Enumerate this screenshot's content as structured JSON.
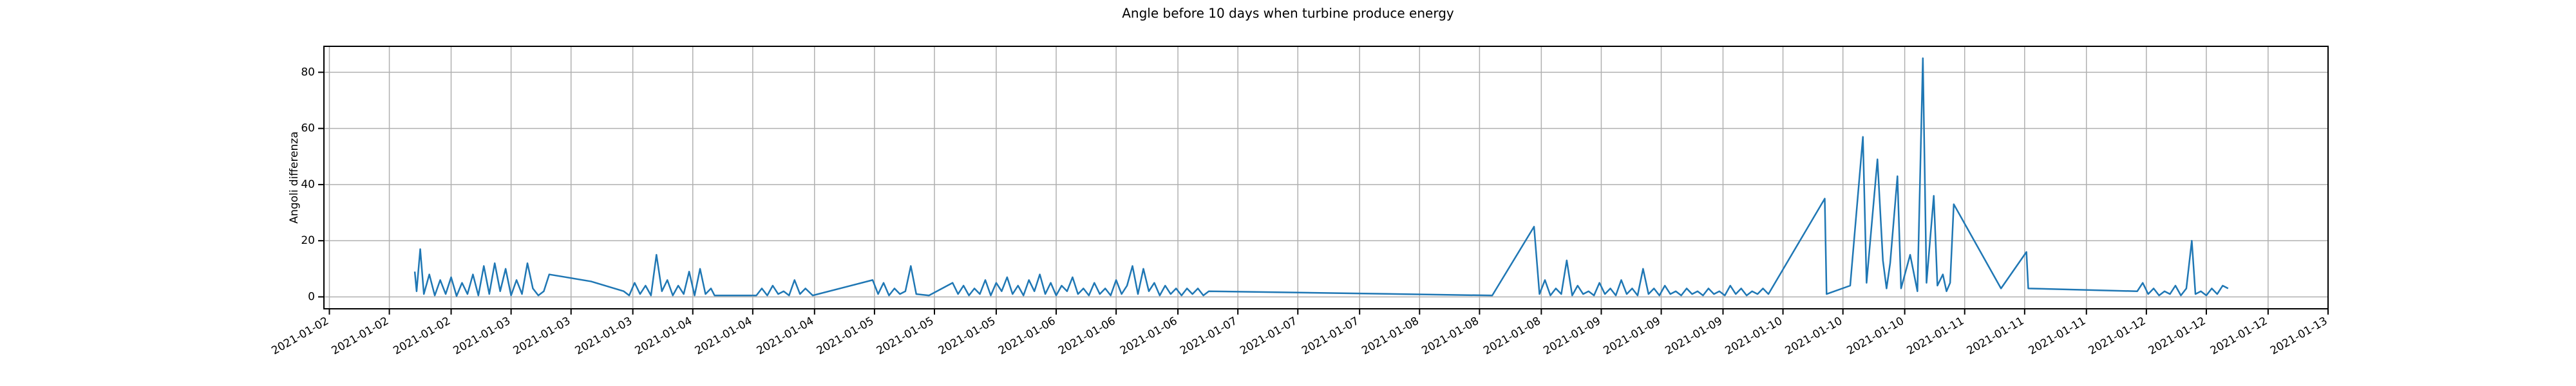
{
  "chart_data": {
    "type": "line",
    "title": "Angle before 10 days when turbine produce energy",
    "y_label": "Angoli differenza",
    "grid": true,
    "xlim": [
      0.97,
      12.0
    ],
    "ylim": [
      -4.25,
      89.25
    ],
    "yticks": [
      0,
      20,
      40,
      60,
      80
    ],
    "xticks": [
      {
        "value": 1,
        "label": "2021-01-02"
      },
      {
        "value": 1.33,
        "label": "2021-01-02"
      },
      {
        "value": 1.67,
        "label": "2021-01-02"
      },
      {
        "value": 2,
        "label": "2021-01-03"
      },
      {
        "value": 2.33,
        "label": "2021-01-03"
      },
      {
        "value": 2.67,
        "label": "2021-01-03"
      },
      {
        "value": 3,
        "label": "2021-01-04"
      },
      {
        "value": 3.33,
        "label": "2021-01-04"
      },
      {
        "value": 3.67,
        "label": "2021-01-04"
      },
      {
        "value": 4,
        "label": "2021-01-05"
      },
      {
        "value": 4.33,
        "label": "2021-01-05"
      },
      {
        "value": 4.67,
        "label": "2021-01-05"
      },
      {
        "value": 5,
        "label": "2021-01-06"
      },
      {
        "value": 5.33,
        "label": "2021-01-06"
      },
      {
        "value": 5.67,
        "label": "2021-01-06"
      },
      {
        "value": 6,
        "label": "2021-01-07"
      },
      {
        "value": 6.33,
        "label": "2021-01-07"
      },
      {
        "value": 6.67,
        "label": "2021-01-07"
      },
      {
        "value": 7,
        "label": "2021-01-08"
      },
      {
        "value": 7.33,
        "label": "2021-01-08"
      },
      {
        "value": 7.67,
        "label": "2021-01-08"
      },
      {
        "value": 8,
        "label": "2021-01-09"
      },
      {
        "value": 8.33,
        "label": "2021-01-09"
      },
      {
        "value": 8.67,
        "label": "2021-01-09"
      },
      {
        "value": 9,
        "label": "2021-01-10"
      },
      {
        "value": 9.33,
        "label": "2021-01-10"
      },
      {
        "value": 9.67,
        "label": "2021-01-10"
      },
      {
        "value": 10,
        "label": "2021-01-11"
      },
      {
        "value": 10.33,
        "label": "2021-01-11"
      },
      {
        "value": 10.67,
        "label": "2021-01-11"
      },
      {
        "value": 11,
        "label": "2021-01-12"
      },
      {
        "value": 11.33,
        "label": "2021-01-12"
      },
      {
        "value": 11.67,
        "label": "2021-01-12"
      },
      {
        "value": 12,
        "label": "2021-01-13"
      }
    ],
    "series": [
      {
        "color": "#1f77b4",
        "x": [
          1.47,
          1.48,
          1.5,
          1.52,
          1.55,
          1.58,
          1.61,
          1.64,
          1.67,
          1.7,
          1.73,
          1.76,
          1.79,
          1.82,
          1.85,
          1.88,
          1.91,
          1.94,
          1.97,
          2.0,
          2.03,
          2.06,
          2.09,
          2.12,
          2.15,
          2.18,
          2.21,
          2.44,
          2.62,
          2.65,
          2.68,
          2.71,
          2.74,
          2.77,
          2.8,
          2.83,
          2.86,
          2.89,
          2.92,
          2.95,
          2.98,
          3.01,
          3.04,
          3.07,
          3.1,
          3.12,
          3.35,
          3.38,
          3.41,
          3.44,
          3.47,
          3.5,
          3.53,
          3.56,
          3.59,
          3.62,
          3.66,
          3.84,
          3.99,
          4.02,
          4.05,
          4.08,
          4.11,
          4.14,
          4.17,
          4.2,
          4.23,
          4.3,
          4.43,
          4.46,
          4.49,
          4.52,
          4.55,
          4.58,
          4.61,
          4.64,
          4.67,
          4.7,
          4.73,
          4.76,
          4.79,
          4.82,
          4.85,
          4.88,
          4.91,
          4.94,
          4.97,
          5.0,
          5.03,
          5.06,
          5.09,
          5.12,
          5.15,
          5.18,
          5.21,
          5.24,
          5.27,
          5.3,
          5.33,
          5.36,
          5.39,
          5.42,
          5.45,
          5.48,
          5.51,
          5.54,
          5.57,
          5.6,
          5.63,
          5.66,
          5.69,
          5.72,
          5.75,
          5.78,
          5.81,
          5.84,
          7.4,
          7.63,
          7.66,
          7.69,
          7.72,
          7.75,
          7.78,
          7.81,
          7.84,
          7.87,
          7.9,
          7.93,
          7.96,
          7.99,
          8.02,
          8.05,
          8.08,
          8.11,
          8.14,
          8.17,
          8.2,
          8.23,
          8.26,
          8.29,
          8.32,
          8.35,
          8.38,
          8.41,
          8.44,
          8.47,
          8.5,
          8.53,
          8.56,
          8.59,
          8.62,
          8.65,
          8.68,
          8.71,
          8.74,
          8.77,
          8.8,
          8.83,
          8.86,
          8.89,
          8.92,
          9.23,
          9.24,
          9.37,
          9.44,
          9.46,
          9.52,
          9.55,
          9.57,
          9.59,
          9.63,
          9.65,
          9.7,
          9.74,
          9.77,
          9.79,
          9.83,
          9.85,
          9.88,
          9.9,
          9.92,
          9.94,
          10.2,
          10.34,
          10.35,
          10.95,
          10.98,
          11.01,
          11.04,
          11.07,
          11.1,
          11.13,
          11.16,
          11.19,
          11.22,
          11.25,
          11.27,
          11.3,
          11.33,
          11.36,
          11.39,
          11.42,
          11.45
        ],
        "values": [
          9,
          2,
          17,
          1,
          8,
          0.5,
          6,
          1,
          7,
          0.3,
          5,
          1,
          8,
          0.5,
          11,
          1,
          12,
          2,
          10,
          0.5,
          6,
          1,
          12,
          3,
          0.5,
          2,
          8,
          5.5,
          2,
          0.5,
          5,
          1,
          4,
          0.5,
          15,
          2,
          6,
          0.5,
          4,
          1,
          9,
          0.5,
          10,
          1,
          3,
          0.5,
          0.5,
          3,
          0.5,
          4,
          1,
          2,
          0.5,
          6,
          1,
          3,
          0.5,
          3.5,
          6,
          1,
          5,
          0.5,
          3,
          1,
          2,
          11,
          1,
          0.5,
          5,
          1,
          4,
          0.5,
          3,
          1,
          6,
          0.5,
          5,
          2,
          7,
          1,
          4,
          0.5,
          6,
          2,
          8,
          1,
          5,
          0.5,
          4,
          2,
          7,
          1,
          3,
          0.5,
          5,
          1,
          3,
          0.5,
          6,
          1,
          4,
          11,
          1,
          10,
          2,
          5,
          0.5,
          4,
          1,
          3,
          0.5,
          3,
          1,
          3,
          0.5,
          2,
          0.5,
          25,
          1,
          6,
          0.5,
          3,
          1,
          13,
          0.5,
          4,
          1,
          2,
          0.5,
          5,
          1,
          3,
          0.5,
          6,
          1,
          3,
          0.5,
          10,
          1,
          3,
          0.5,
          4,
          1,
          2,
          0.5,
          3,
          1,
          2,
          0.5,
          3,
          1,
          2,
          0.5,
          4,
          1,
          3,
          0.5,
          2,
          1,
          3,
          1,
          35,
          1,
          4,
          57,
          5,
          49,
          13,
          3,
          12,
          43,
          3,
          15,
          2,
          85,
          5,
          36,
          4,
          8,
          2,
          5,
          33,
          3,
          16,
          3,
          2,
          5,
          1,
          3,
          0.5,
          2,
          1,
          4,
          0.5,
          3,
          20,
          1,
          2,
          0.5,
          3,
          1,
          4,
          3
        ]
      }
    ]
  }
}
